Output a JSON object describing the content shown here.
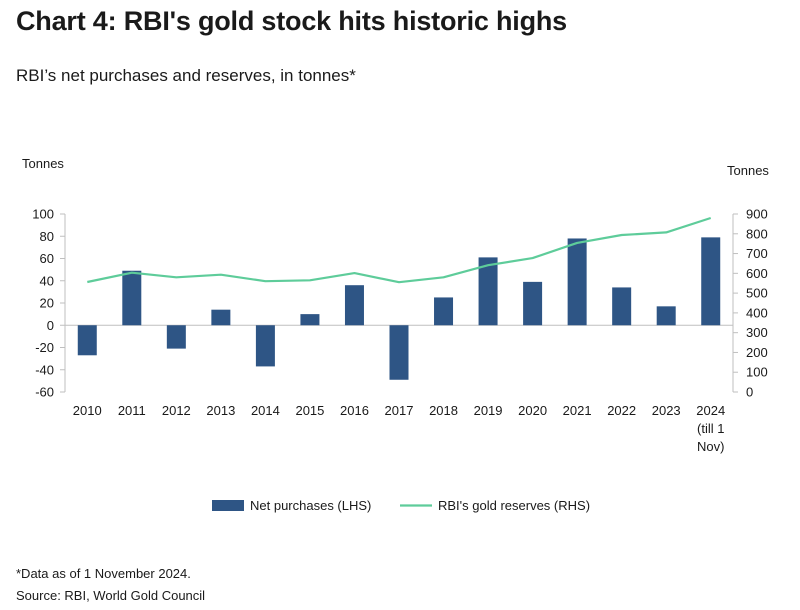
{
  "chart_data": {
    "type": "bar",
    "title": "Chart 4: RBI's gold stock hits historic highs",
    "subtitle": "RBI’s net purchases and reserves, in tonnes*",
    "ylabel_left": "Tonnes",
    "ylabel_right": "Tonnes",
    "categories": [
      "2010",
      "2011",
      "2012",
      "2013",
      "2014",
      "2015",
      "2016",
      "2017",
      "2018",
      "2019",
      "2020",
      "2021",
      "2022",
      "2023",
      "2024 (till 1 Nov)"
    ],
    "category_lines": [
      [
        "2010"
      ],
      [
        "2011"
      ],
      [
        "2012"
      ],
      [
        "2013"
      ],
      [
        "2014"
      ],
      [
        "2015"
      ],
      [
        "2016"
      ],
      [
        "2017"
      ],
      [
        "2018"
      ],
      [
        "2019"
      ],
      [
        "2020"
      ],
      [
        "2021"
      ],
      [
        "2022"
      ],
      [
        "2023"
      ],
      [
        "2024",
        "(till 1",
        "Nov)"
      ]
    ],
    "series": [
      {
        "name": "Net purchases (LHS)",
        "kind": "bar",
        "axis": "left",
        "color": "#2e5585",
        "values": [
          -27,
          49,
          -21,
          14,
          -37,
          10,
          36,
          -49,
          25,
          61,
          39,
          78,
          34,
          17,
          79
        ]
      },
      {
        "name": "RBI's gold reserves (RHS)",
        "kind": "line",
        "axis": "right",
        "color": "#5ecc9a",
        "values": [
          556,
          603,
          580,
          593,
          560,
          565,
          601,
          555,
          580,
          641,
          677,
          754,
          794,
          807,
          880
        ]
      }
    ],
    "ylim_left": [
      -60,
      100
    ],
    "yticks_left": [
      -60,
      -40,
      -20,
      0,
      20,
      40,
      60,
      80,
      100
    ],
    "ylim_right": [
      0,
      900
    ],
    "yticks_right": [
      0,
      100,
      200,
      300,
      400,
      500,
      600,
      700,
      800,
      900
    ],
    "grid": false,
    "legend_position": "bottom"
  },
  "footnote": "*Data as of 1 November 2024.",
  "source": "Source: RBI, World Gold Council"
}
